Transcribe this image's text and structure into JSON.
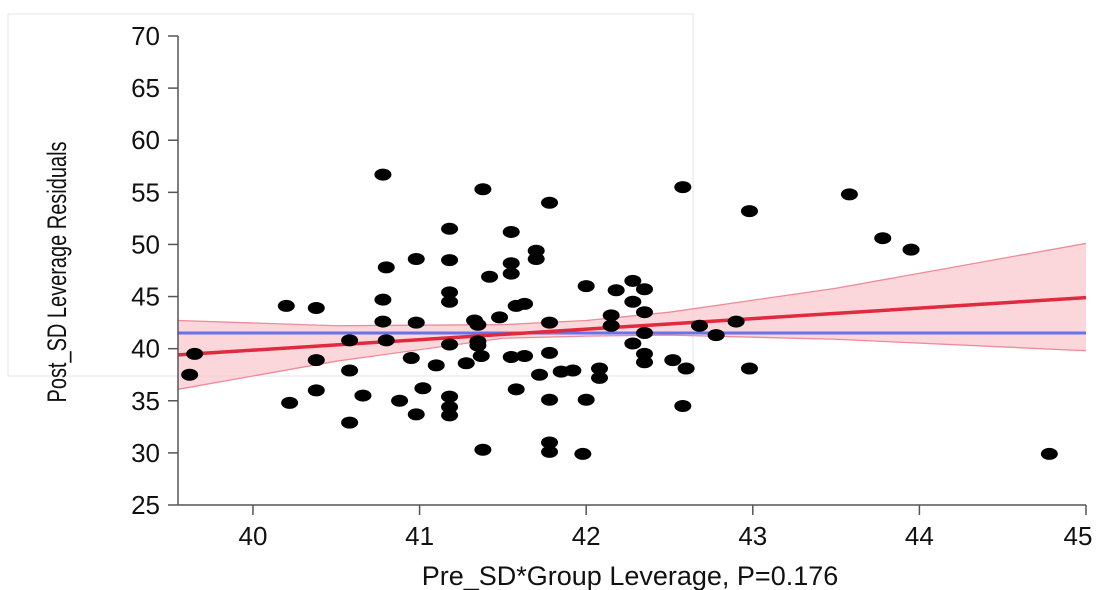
{
  "colors": {
    "fit_line": "#e02a3e",
    "confidence_band": "#f9c9d0",
    "confidence_edge": "#ef8a98",
    "mean_line": "#6a72e8",
    "points": "#000000",
    "axis": "#555555"
  },
  "chart_data": {
    "type": "scatter",
    "xlabel": "Pre_SD*Group Leverage, P=0.176",
    "ylabel": "Post_SD Leverage Residuals",
    "xlim": [
      39.55,
      45
    ],
    "ylim": [
      25,
      70
    ],
    "xticks": [
      "40",
      "41",
      "42",
      "43",
      "44",
      "45"
    ],
    "yticks": [
      "25",
      "30",
      "35",
      "40",
      "45",
      "50",
      "55",
      "60",
      "65",
      "70"
    ],
    "grid": false,
    "fit_line": {
      "x": [
        39.55,
        45
      ],
      "y": [
        39.4,
        44.9
      ]
    },
    "mean_line": {
      "y": 41.5
    },
    "confidence_band": {
      "x": [
        39.55,
        40.5,
        41.5,
        42.0,
        42.5,
        43.5,
        45
      ],
      "upper": [
        42.7,
        42.2,
        42.3,
        42.7,
        43.5,
        45.8,
        50.1
      ],
      "lower": [
        36.1,
        38.8,
        41.0,
        41.2,
        41.3,
        40.9,
        39.8
      ]
    },
    "series": [
      {
        "points": [
          [
            39.62,
            37.5
          ],
          [
            39.65,
            39.5
          ],
          [
            40.2,
            44.1
          ],
          [
            40.22,
            34.8
          ],
          [
            40.38,
            43.9
          ],
          [
            40.38,
            38.9
          ],
          [
            40.38,
            36.0
          ],
          [
            40.58,
            40.8
          ],
          [
            40.58,
            37.9
          ],
          [
            40.58,
            32.9
          ],
          [
            40.66,
            35.5
          ],
          [
            40.78,
            56.7
          ],
          [
            40.78,
            44.7
          ],
          [
            40.78,
            42.6
          ],
          [
            40.8,
            47.8
          ],
          [
            40.8,
            40.8
          ],
          [
            40.88,
            35.0
          ],
          [
            40.95,
            39.1
          ],
          [
            40.98,
            48.6
          ],
          [
            40.98,
            42.5
          ],
          [
            40.98,
            33.7
          ],
          [
            41.02,
            36.2
          ],
          [
            41.1,
            38.4
          ],
          [
            41.18,
            51.5
          ],
          [
            41.18,
            48.5
          ],
          [
            41.18,
            45.4
          ],
          [
            41.18,
            44.5
          ],
          [
            41.18,
            40.4
          ],
          [
            41.18,
            35.4
          ],
          [
            41.18,
            34.4
          ],
          [
            41.18,
            33.6
          ],
          [
            41.28,
            38.6
          ],
          [
            41.33,
            42.7
          ],
          [
            41.35,
            42.3
          ],
          [
            41.35,
            40.7
          ],
          [
            41.35,
            40.3
          ],
          [
            41.37,
            39.3
          ],
          [
            41.38,
            55.3
          ],
          [
            41.38,
            30.3
          ],
          [
            41.42,
            46.9
          ],
          [
            41.48,
            43.0
          ],
          [
            41.55,
            51.2
          ],
          [
            41.55,
            48.2
          ],
          [
            41.55,
            47.2
          ],
          [
            41.55,
            39.2
          ],
          [
            41.58,
            44.1
          ],
          [
            41.58,
            36.1
          ],
          [
            41.63,
            44.3
          ],
          [
            41.63,
            39.3
          ],
          [
            41.7,
            49.4
          ],
          [
            41.7,
            48.6
          ],
          [
            41.72,
            37.5
          ],
          [
            41.78,
            54.0
          ],
          [
            41.78,
            42.5
          ],
          [
            41.78,
            39.6
          ],
          [
            41.78,
            35.1
          ],
          [
            41.78,
            31.0
          ],
          [
            41.78,
            30.1
          ],
          [
            41.85,
            37.8
          ],
          [
            41.92,
            37.9
          ],
          [
            41.98,
            29.9
          ],
          [
            42.0,
            46.0
          ],
          [
            42.0,
            35.1
          ],
          [
            42.08,
            38.1
          ],
          [
            42.08,
            37.2
          ],
          [
            42.15,
            43.2
          ],
          [
            42.15,
            42.2
          ],
          [
            42.18,
            45.6
          ],
          [
            42.28,
            46.5
          ],
          [
            42.28,
            44.5
          ],
          [
            42.28,
            40.5
          ],
          [
            42.35,
            45.7
          ],
          [
            42.35,
            43.5
          ],
          [
            42.35,
            41.5
          ],
          [
            42.35,
            39.5
          ],
          [
            42.35,
            38.7
          ],
          [
            42.52,
            38.9
          ],
          [
            42.58,
            55.5
          ],
          [
            42.58,
            34.5
          ],
          [
            42.6,
            38.1
          ],
          [
            42.68,
            42.2
          ],
          [
            42.78,
            41.3
          ],
          [
            42.9,
            42.6
          ],
          [
            42.98,
            53.2
          ],
          [
            42.98,
            38.1
          ],
          [
            43.58,
            54.8
          ],
          [
            43.78,
            50.6
          ],
          [
            43.95,
            49.5
          ],
          [
            44.78,
            29.9
          ]
        ]
      }
    ]
  }
}
